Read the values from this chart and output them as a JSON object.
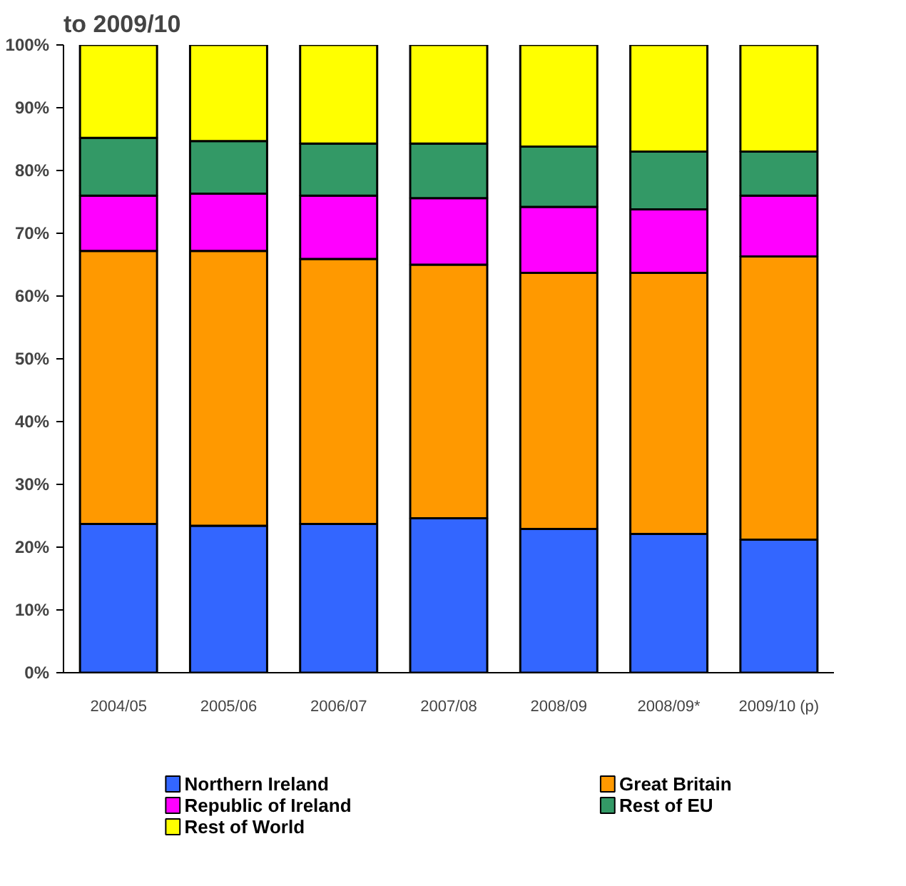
{
  "chart_data": {
    "type": "bar",
    "title": "to 2009/10",
    "stacked": true,
    "categories": [
      "2004/05",
      "2005/06",
      "2006/07",
      "2007/08",
      "2008/09",
      "2008/09*",
      "2009/10 (p)"
    ],
    "series": [
      {
        "name": "Northern Ireland",
        "color": "#3366ff",
        "values": [
          23.7,
          23.4,
          23.7,
          24.6,
          22.9,
          22.1,
          21.2
        ]
      },
      {
        "name": "Great Britain",
        "color": "#ff9900",
        "values": [
          43.5,
          43.8,
          42.2,
          40.4,
          40.8,
          41.6,
          45.1
        ]
      },
      {
        "name": "Republic of Ireland",
        "color": "#ff00ff",
        "values": [
          8.8,
          9.1,
          10.1,
          10.6,
          10.5,
          10.1,
          9.7
        ]
      },
      {
        "name": "Rest of EU",
        "color": "#339966",
        "values": [
          9.2,
          8.4,
          8.3,
          8.7,
          9.6,
          9.2,
          7.0
        ]
      },
      {
        "name": "Rest of World",
        "color": "#ffff00",
        "values": [
          14.8,
          15.3,
          15.7,
          15.7,
          16.2,
          17.0,
          17.0
        ]
      }
    ],
    "ylim": [
      0,
      100
    ],
    "yticks": [
      {
        "value": 0,
        "label": "0%"
      },
      {
        "value": 10,
        "label": "10%"
      },
      {
        "value": 20,
        "label": "20%"
      },
      {
        "value": 30,
        "label": "30%"
      },
      {
        "value": 40,
        "label": "40%"
      },
      {
        "value": 50,
        "label": "50%"
      },
      {
        "value": 60,
        "label": "60%"
      },
      {
        "value": 70,
        "label": "70%"
      },
      {
        "value": 80,
        "label": "80%"
      },
      {
        "value": 90,
        "label": "90%"
      },
      {
        "value": 100,
        "label": "100%"
      }
    ],
    "grid": false,
    "legend": "bottom"
  }
}
